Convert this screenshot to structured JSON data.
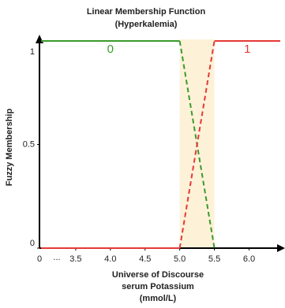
{
  "chart_data": {
    "type": "line",
    "title": "Linear Membership Function",
    "subtitle": "(Hyperkalemia)",
    "y_label": "Fuzzy Membership",
    "x_label": [
      "Universe of Discourse",
      "serum Potassium",
      "(mmol/L)"
    ],
    "x_origin_label": "0",
    "x_break_label": "...",
    "xlim": [
      3.0,
      6.45
    ],
    "ylim": [
      0,
      1
    ],
    "xticks": [
      {
        "value": 3.5,
        "label": "3.5"
      },
      {
        "value": 4.0,
        "label": "4.0"
      },
      {
        "value": 4.5,
        "label": "4.5"
      },
      {
        "value": 5.0,
        "label": "5.0"
      },
      {
        "value": 5.5,
        "label": "5.5"
      },
      {
        "value": 6.0,
        "label": "6.0"
      }
    ],
    "yticks": [
      0,
      0.5,
      1
    ],
    "dashed_range": [
      5.0,
      5.5
    ],
    "shade_color": "#fdf1d8",
    "series": [
      {
        "name": "0",
        "color": "#3a9a2a",
        "x": [
          3.0,
          5.0,
          5.5
        ],
        "values": [
          1,
          1,
          0
        ]
      },
      {
        "name": "1",
        "color": "#e53935",
        "x": [
          3.0,
          5.0,
          5.5,
          6.45
        ],
        "values": [
          0,
          0,
          1,
          1
        ]
      }
    ]
  }
}
